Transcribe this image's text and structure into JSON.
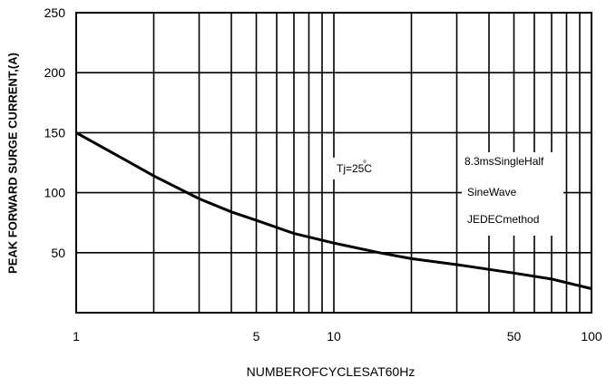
{
  "chart_data": {
    "type": "line",
    "title": "",
    "xlabel": "NUMBEROFCYCLESAT60Hz",
    "ylabel": "PEAK FORWARD SURGE CURRENT,(A)",
    "x_scale": "log",
    "xlim": [
      1,
      100
    ],
    "ylim": [
      0,
      250
    ],
    "x_ticks": [
      1,
      5,
      10,
      50,
      100
    ],
    "x_tick_labels": [
      "1",
      "5",
      "10",
      "50",
      "100"
    ],
    "y_ticks": [
      50,
      100,
      150,
      200,
      250
    ],
    "y_tick_labels": [
      "50",
      "100",
      "150",
      "200",
      "250"
    ],
    "grid": true,
    "series": [
      {
        "x": [
          1,
          1.5,
          2,
          3,
          4,
          5,
          7,
          10,
          15,
          20,
          30,
          50,
          70,
          100
        ],
        "y": [
          150,
          129,
          114,
          95,
          84,
          77,
          66,
          58,
          50,
          45,
          40,
          33,
          28,
          20
        ]
      }
    ],
    "annotations": {
      "temperature": "Tj=25",
      "temperature_unit": "C",
      "degree_mark": "°",
      "method_line1": "8.3msSingleHalf",
      "method_line2": "SineWave",
      "method_line3": "JEDECmethod"
    },
    "colors": {
      "line": "#000000",
      "grid": "#000000",
      "background": "#ffffff"
    }
  }
}
